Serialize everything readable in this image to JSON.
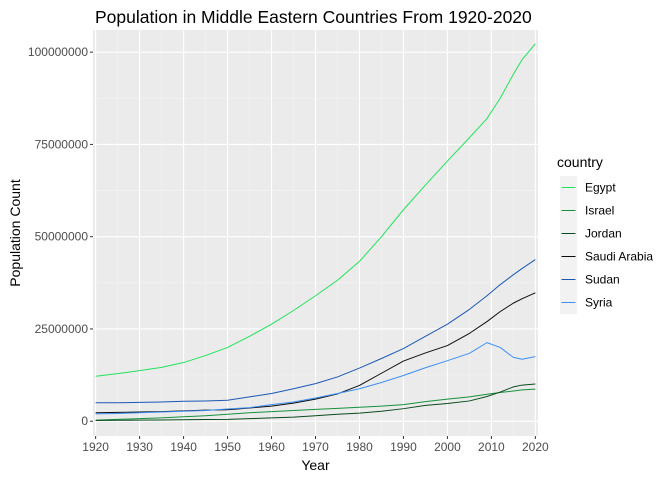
{
  "chart_data": {
    "type": "line",
    "title": "Population in Middle Eastern Countries From 1920-2020",
    "xlabel": "Year",
    "ylabel": "Population Count",
    "xlim": [
      1919.4,
      2020.6
    ],
    "ylim": [
      -4000000,
      106000000
    ],
    "x_ticks": [
      1920,
      1930,
      1940,
      1950,
      1960,
      1970,
      1980,
      1990,
      2000,
      2010,
      2020
    ],
    "y_ticks": [
      0,
      25000000,
      50000000,
      75000000,
      100000000
    ],
    "y_tick_labels": [
      "0",
      "25000000",
      "50000000",
      "75000000",
      "100000000"
    ],
    "grid": true,
    "legend": {
      "title": "country",
      "position": "right"
    },
    "x": [
      1920,
      1925,
      1930,
      1935,
      1940,
      1945,
      1950,
      1955,
      1960,
      1965,
      1970,
      1975,
      1980,
      1985,
      1990,
      1995,
      2000,
      2005,
      2009,
      2012,
      2015,
      2017,
      2020
    ],
    "series": [
      {
        "name": "Egypt",
        "color": "#21e35a",
        "values": [
          12200000,
          12900000,
          13700000,
          14600000,
          15900000,
          17800000,
          20000000,
          23000000,
          26300000,
          30000000,
          34000000,
          38200000,
          43300000,
          50000000,
          57300000,
          64000000,
          70500000,
          76800000,
          82000000,
          87500000,
          94000000,
          98000000,
          102300000
        ]
      },
      {
        "name": "Israel",
        "color": "#16903d",
        "values": [
          300000,
          500000,
          700000,
          900000,
          1200000,
          1500000,
          1900000,
          2300000,
          2600000,
          2900000,
          3200000,
          3500000,
          3800000,
          4100000,
          4500000,
          5300000,
          6000000,
          6600000,
          7300000,
          7800000,
          8200000,
          8500000,
          8700000
        ]
      },
      {
        "name": "Jordan",
        "color": "#0b4a1f",
        "values": [
          200000,
          250000,
          300000,
          350000,
          400000,
          460000,
          500000,
          700000,
          900000,
          1100000,
          1500000,
          1900000,
          2200000,
          2700000,
          3400000,
          4300000,
          4800000,
          5500000,
          6700000,
          7900000,
          9300000,
          9800000,
          10100000
        ]
      },
      {
        "name": "Saudi Arabia",
        "color": "#0d0d0d",
        "values": [
          2300000,
          2400000,
          2500000,
          2600000,
          2800000,
          3000000,
          3100000,
          3600000,
          4100000,
          4900000,
          6000000,
          7400000,
          9700000,
          13000000,
          16300000,
          18500000,
          20500000,
          23800000,
          27000000,
          29700000,
          32000000,
          33200000,
          34800000
        ]
      },
      {
        "name": "Sudan",
        "color": "#1c58b5",
        "values": [
          5000000,
          5000000,
          5100000,
          5200000,
          5400000,
          5500000,
          5700000,
          6600000,
          7500000,
          8800000,
          10200000,
          12000000,
          14400000,
          17000000,
          19700000,
          23000000,
          26300000,
          30300000,
          34000000,
          37000000,
          39700000,
          41400000,
          43800000
        ]
      },
      {
        "name": "Syria",
        "color": "#3d8ff5",
        "values": [
          2000000,
          2100000,
          2300000,
          2500000,
          2700000,
          2900000,
          3300000,
          3700000,
          4500000,
          5200000,
          6300000,
          7500000,
          8800000,
          10500000,
          12400000,
          14500000,
          16400000,
          18400000,
          21300000,
          20000000,
          17300000,
          16800000,
          17500000
        ]
      }
    ]
  }
}
